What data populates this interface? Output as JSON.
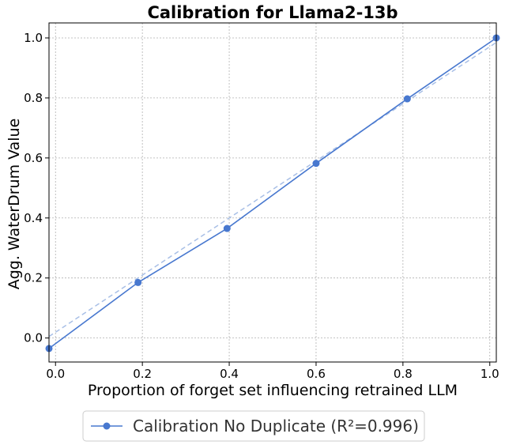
{
  "chart_data": {
    "type": "line",
    "title": "Calibration for Llama2-13b",
    "xlabel": "Proportion of forget set influencing retrained LLM",
    "ylabel": "Agg. WaterDrum Value",
    "xlim": [
      -0.015,
      1.015
    ],
    "ylim": [
      -0.08,
      1.05
    ],
    "xticks": [
      "0.0",
      "0.2",
      "0.4",
      "0.6",
      "0.8",
      "1.0"
    ],
    "yticks": [
      "0.0",
      "0.2",
      "0.4",
      "0.6",
      "0.8",
      "1.0"
    ],
    "grid": true,
    "legend_position": "bottom-center",
    "series": [
      {
        "name": "Calibration No Duplicate (R²=0.996)",
        "color": "#4878CF",
        "x": [
          -0.015,
          0.19,
          0.395,
          0.6,
          0.81,
          1.015
        ],
        "y": [
          -0.035,
          0.185,
          0.365,
          0.582,
          0.797,
          1.0
        ]
      }
    ],
    "reference_line": {
      "color": "#A8BFE6",
      "style": "dashed",
      "x": [
        -0.015,
        1.015
      ],
      "y": [
        0.005,
        0.985
      ]
    }
  }
}
